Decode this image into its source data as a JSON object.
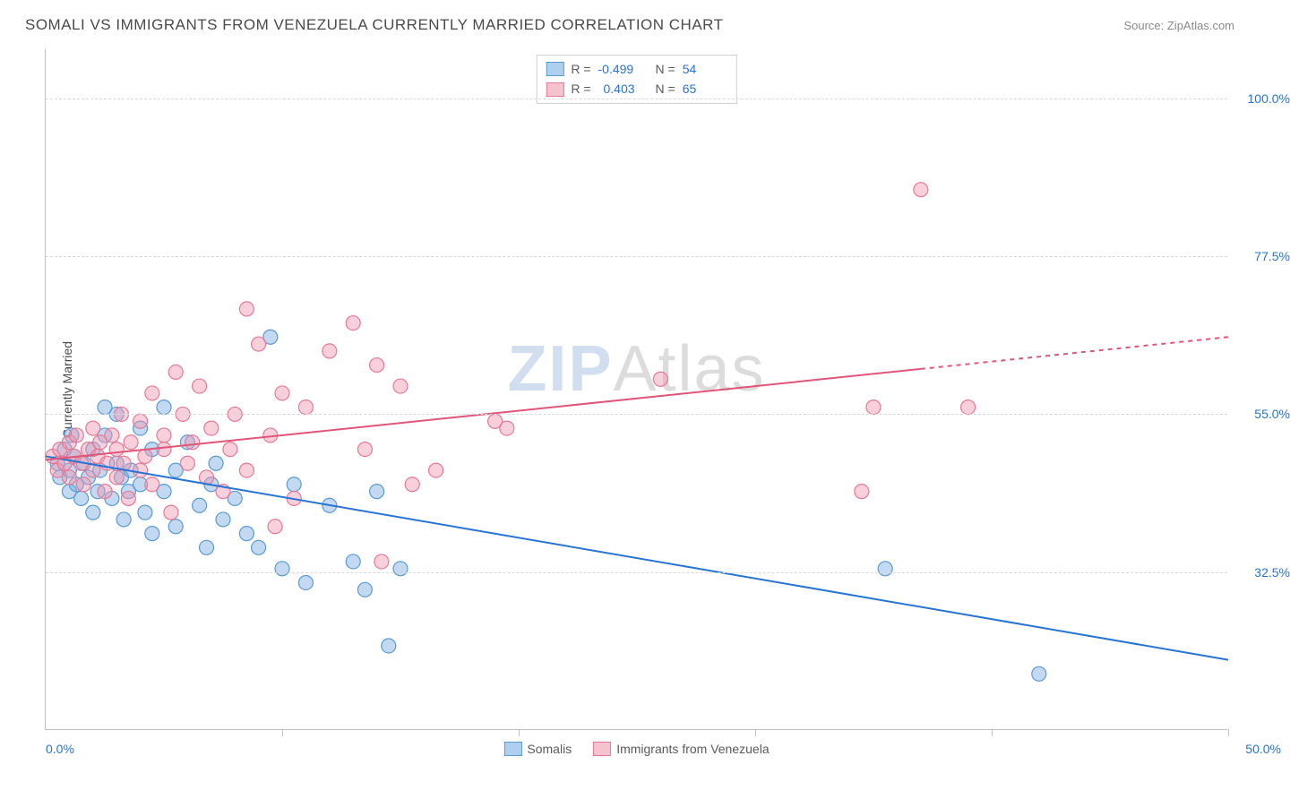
{
  "title": "SOMALI VS IMMIGRANTS FROM VENEZUELA CURRENTLY MARRIED CORRELATION CHART",
  "source": "Source: ZipAtlas.com",
  "watermark_a": "ZIP",
  "watermark_b": "Atlas",
  "y_axis_title": "Currently Married",
  "chart": {
    "type": "scatter",
    "xlim": [
      0,
      50
    ],
    "ylim": [
      10,
      107
    ],
    "x_ticks": [
      0,
      10,
      20,
      30,
      40,
      50
    ],
    "y_ticks": [
      32.5,
      55.0,
      77.5,
      100.0
    ],
    "x_min_label": "0.0%",
    "x_max_label": "50.0%",
    "y_tick_labels": [
      "32.5%",
      "55.0%",
      "77.5%",
      "100.0%"
    ],
    "grid_color": "#d8d8d8",
    "background": "#ffffff",
    "marker_radius": 8,
    "marker_stroke_width": 1.2,
    "series": [
      {
        "name": "Somalis",
        "fill": "rgba(120,170,225,0.45)",
        "stroke": "#5a9bd4",
        "swatch_fill": "#aecfee",
        "swatch_stroke": "#5a9bd4",
        "R": "-0.499",
        "N": "54",
        "trend": {
          "x1": 0,
          "y1": 49,
          "x2": 50,
          "y2": 20,
          "solid_to_x": 50,
          "color": "#2874d4",
          "width": 2
        },
        "points": [
          [
            0.5,
            48
          ],
          [
            0.6,
            46
          ],
          [
            0.8,
            50
          ],
          [
            1.0,
            44
          ],
          [
            1.0,
            47
          ],
          [
            1.1,
            52
          ],
          [
            1.2,
            49
          ],
          [
            1.3,
            45
          ],
          [
            1.5,
            43
          ],
          [
            1.6,
            48
          ],
          [
            1.8,
            46
          ],
          [
            2.0,
            50
          ],
          [
            2.0,
            41
          ],
          [
            2.2,
            44
          ],
          [
            2.3,
            47
          ],
          [
            2.5,
            52
          ],
          [
            2.5,
            56
          ],
          [
            2.8,
            43
          ],
          [
            3.0,
            55
          ],
          [
            3.0,
            48
          ],
          [
            3.2,
            46
          ],
          [
            3.3,
            40
          ],
          [
            3.5,
            44
          ],
          [
            3.6,
            47
          ],
          [
            4.0,
            53
          ],
          [
            4.0,
            45
          ],
          [
            4.2,
            41
          ],
          [
            4.5,
            50
          ],
          [
            4.5,
            38
          ],
          [
            5.0,
            56
          ],
          [
            5.0,
            44
          ],
          [
            5.5,
            47
          ],
          [
            5.5,
            39
          ],
          [
            6.0,
            51
          ],
          [
            6.5,
            42
          ],
          [
            6.8,
            36
          ],
          [
            7.0,
            45
          ],
          [
            7.2,
            48
          ],
          [
            7.5,
            40
          ],
          [
            8.0,
            43
          ],
          [
            8.5,
            38
          ],
          [
            9.0,
            36
          ],
          [
            9.5,
            66
          ],
          [
            10.0,
            33
          ],
          [
            10.5,
            45
          ],
          [
            11.0,
            31
          ],
          [
            12.0,
            42
          ],
          [
            13.0,
            34
          ],
          [
            13.5,
            30
          ],
          [
            14.0,
            44
          ],
          [
            14.5,
            22
          ],
          [
            15.0,
            33
          ],
          [
            35.5,
            33
          ],
          [
            42.0,
            18
          ]
        ]
      },
      {
        "name": "Immigrants from Venezuela",
        "fill": "rgba(240,150,175,0.45)",
        "stroke": "#e77996",
        "swatch_fill": "#f5c3d0",
        "swatch_stroke": "#e77996",
        "R": "0.403",
        "N": "65",
        "trend": {
          "x1": 0,
          "y1": 48.5,
          "x2": 50,
          "y2": 66,
          "solid_to_x": 37,
          "color": "#e05578",
          "width": 2
        },
        "points": [
          [
            0.3,
            49
          ],
          [
            0.5,
            47
          ],
          [
            0.6,
            50
          ],
          [
            0.8,
            48
          ],
          [
            1.0,
            51
          ],
          [
            1.0,
            46
          ],
          [
            1.2,
            49
          ],
          [
            1.3,
            52
          ],
          [
            1.5,
            48
          ],
          [
            1.6,
            45
          ],
          [
            1.8,
            50
          ],
          [
            2.0,
            53
          ],
          [
            2.0,
            47
          ],
          [
            2.2,
            49
          ],
          [
            2.3,
            51
          ],
          [
            2.5,
            44
          ],
          [
            2.6,
            48
          ],
          [
            2.8,
            52
          ],
          [
            3.0,
            46
          ],
          [
            3.0,
            50
          ],
          [
            3.2,
            55
          ],
          [
            3.3,
            48
          ],
          [
            3.5,
            43
          ],
          [
            3.6,
            51
          ],
          [
            4.0,
            54
          ],
          [
            4.0,
            47
          ],
          [
            4.2,
            49
          ],
          [
            4.5,
            58
          ],
          [
            4.5,
            45
          ],
          [
            5.0,
            52
          ],
          [
            5.0,
            50
          ],
          [
            5.3,
            41
          ],
          [
            5.5,
            61
          ],
          [
            5.8,
            55
          ],
          [
            6.0,
            48
          ],
          [
            6.2,
            51
          ],
          [
            6.5,
            59
          ],
          [
            6.8,
            46
          ],
          [
            7.0,
            53
          ],
          [
            7.5,
            44
          ],
          [
            7.8,
            50
          ],
          [
            8.0,
            55
          ],
          [
            8.5,
            70
          ],
          [
            8.5,
            47
          ],
          [
            9.0,
            65
          ],
          [
            9.5,
            52
          ],
          [
            9.7,
            39
          ],
          [
            10.0,
            58
          ],
          [
            10.5,
            43
          ],
          [
            11.0,
            56
          ],
          [
            12.0,
            64
          ],
          [
            13.0,
            68
          ],
          [
            13.5,
            50
          ],
          [
            14.0,
            62
          ],
          [
            14.2,
            34
          ],
          [
            15.0,
            59
          ],
          [
            15.5,
            45
          ],
          [
            16.5,
            47
          ],
          [
            19.0,
            54
          ],
          [
            19.5,
            53
          ],
          [
            26.0,
            60
          ],
          [
            34.5,
            44
          ],
          [
            35.0,
            56
          ],
          [
            37.0,
            87
          ],
          [
            39.0,
            56
          ]
        ]
      }
    ]
  },
  "stats_labels": {
    "r": "R =",
    "n": "N ="
  }
}
